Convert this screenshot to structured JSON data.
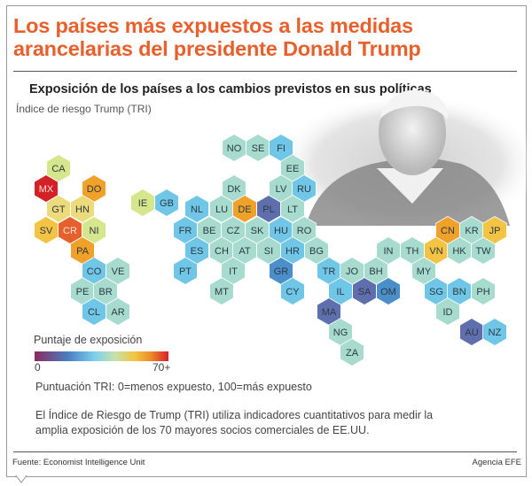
{
  "header": {
    "title": "Los países más expuestos a las medidas arancelarias del presidente Donald Trump",
    "subtitle": "Exposición de los países a los cambios previstos en sus políticas",
    "index_label": "Índice de riesgo Trump (TRI)"
  },
  "palette": {
    "title_orange": "#e8602c",
    "mint": "#a6dbcd",
    "light_blue": "#6fc6e6",
    "blue": "#4a8fc9",
    "slate": "#5f6fae",
    "yellow_green": "#d6e68c",
    "pale_yellow": "#ecdb7a",
    "yellow": "#f3c344",
    "orange": "#efa12a",
    "red_orange": "#e5602b",
    "red": "#d42027"
  },
  "countries": [
    {
      "code": "CA",
      "color": "yellow_green"
    },
    {
      "code": "MX",
      "color": "red"
    },
    {
      "code": "DO",
      "color": "orange"
    },
    {
      "code": "GT",
      "color": "pale_yellow"
    },
    {
      "code": "HN",
      "color": "pale_yellow"
    },
    {
      "code": "SV",
      "color": "yellow"
    },
    {
      "code": "CR",
      "color": "red_orange"
    },
    {
      "code": "NI",
      "color": "yellow_green"
    },
    {
      "code": "PA",
      "color": "orange"
    },
    {
      "code": "CO",
      "color": "light_blue"
    },
    {
      "code": "VE",
      "color": "mint"
    },
    {
      "code": "PE",
      "color": "mint"
    },
    {
      "code": "BR",
      "color": "mint"
    },
    {
      "code": "CL",
      "color": "light_blue"
    },
    {
      "code": "AR",
      "color": "mint"
    },
    {
      "code": "IE",
      "color": "yellow_green"
    },
    {
      "code": "GB",
      "color": "light_blue"
    },
    {
      "code": "NO",
      "color": "mint"
    },
    {
      "code": "SE",
      "color": "mint"
    },
    {
      "code": "FI",
      "color": "light_blue"
    },
    {
      "code": "EE",
      "color": "mint"
    },
    {
      "code": "DK",
      "color": "mint"
    },
    {
      "code": "LV",
      "color": "mint"
    },
    {
      "code": "RU",
      "color": "light_blue"
    },
    {
      "code": "NL",
      "color": "light_blue"
    },
    {
      "code": "LU",
      "color": "mint"
    },
    {
      "code": "DE",
      "color": "orange"
    },
    {
      "code": "PL",
      "color": "slate"
    },
    {
      "code": "LT",
      "color": "mint"
    },
    {
      "code": "FR",
      "color": "light_blue"
    },
    {
      "code": "BE",
      "color": "mint"
    },
    {
      "code": "CZ",
      "color": "mint"
    },
    {
      "code": "SK",
      "color": "mint"
    },
    {
      "code": "HU",
      "color": "light_blue"
    },
    {
      "code": "RO",
      "color": "mint"
    },
    {
      "code": "ES",
      "color": "light_blue"
    },
    {
      "code": "CH",
      "color": "mint"
    },
    {
      "code": "AT",
      "color": "mint"
    },
    {
      "code": "SI",
      "color": "mint"
    },
    {
      "code": "HR",
      "color": "light_blue"
    },
    {
      "code": "BG",
      "color": "mint"
    },
    {
      "code": "PT",
      "color": "light_blue"
    },
    {
      "code": "IT",
      "color": "mint"
    },
    {
      "code": "GR",
      "color": "blue"
    },
    {
      "code": "MT",
      "color": "mint"
    },
    {
      "code": "CY",
      "color": "light_blue"
    },
    {
      "code": "TR",
      "color": "light_blue"
    },
    {
      "code": "JO",
      "color": "mint"
    },
    {
      "code": "BH",
      "color": "mint"
    },
    {
      "code": "IL",
      "color": "light_blue"
    },
    {
      "code": "SA",
      "color": "slate"
    },
    {
      "code": "OM",
      "color": "blue"
    },
    {
      "code": "MA",
      "color": "slate"
    },
    {
      "code": "NG",
      "color": "mint"
    },
    {
      "code": "ZA",
      "color": "mint"
    },
    {
      "code": "IN",
      "color": "mint"
    },
    {
      "code": "TH",
      "color": "mint"
    },
    {
      "code": "VN",
      "color": "yellow"
    },
    {
      "code": "HK",
      "color": "mint"
    },
    {
      "code": "TW",
      "color": "mint"
    },
    {
      "code": "CN",
      "color": "orange"
    },
    {
      "code": "KR",
      "color": "mint"
    },
    {
      "code": "JP",
      "color": "yellow"
    },
    {
      "code": "MY",
      "color": "mint"
    },
    {
      "code": "SG",
      "color": "light_blue"
    },
    {
      "code": "BN",
      "color": "light_blue"
    },
    {
      "code": "PH",
      "color": "mint"
    },
    {
      "code": "ID",
      "color": "mint"
    },
    {
      "code": "AU",
      "color": "slate"
    },
    {
      "code": "NZ",
      "color": "light_blue"
    }
  ],
  "legend": {
    "title": "Puntaje de exposición",
    "min": "0",
    "max": "70+"
  },
  "note": "Puntuación TRI: 0=menos expuesto, 100=más expuesto",
  "description": "El Índice de Riesgo de Trump (TRI) utiliza indicadores cuantitativos para medir la amplia exposición de los 70 mayores socios comerciales de EE.UU.",
  "footer": {
    "source": "Fuente: Economist Intelligence Unit",
    "agency": "Agencia EFE"
  }
}
